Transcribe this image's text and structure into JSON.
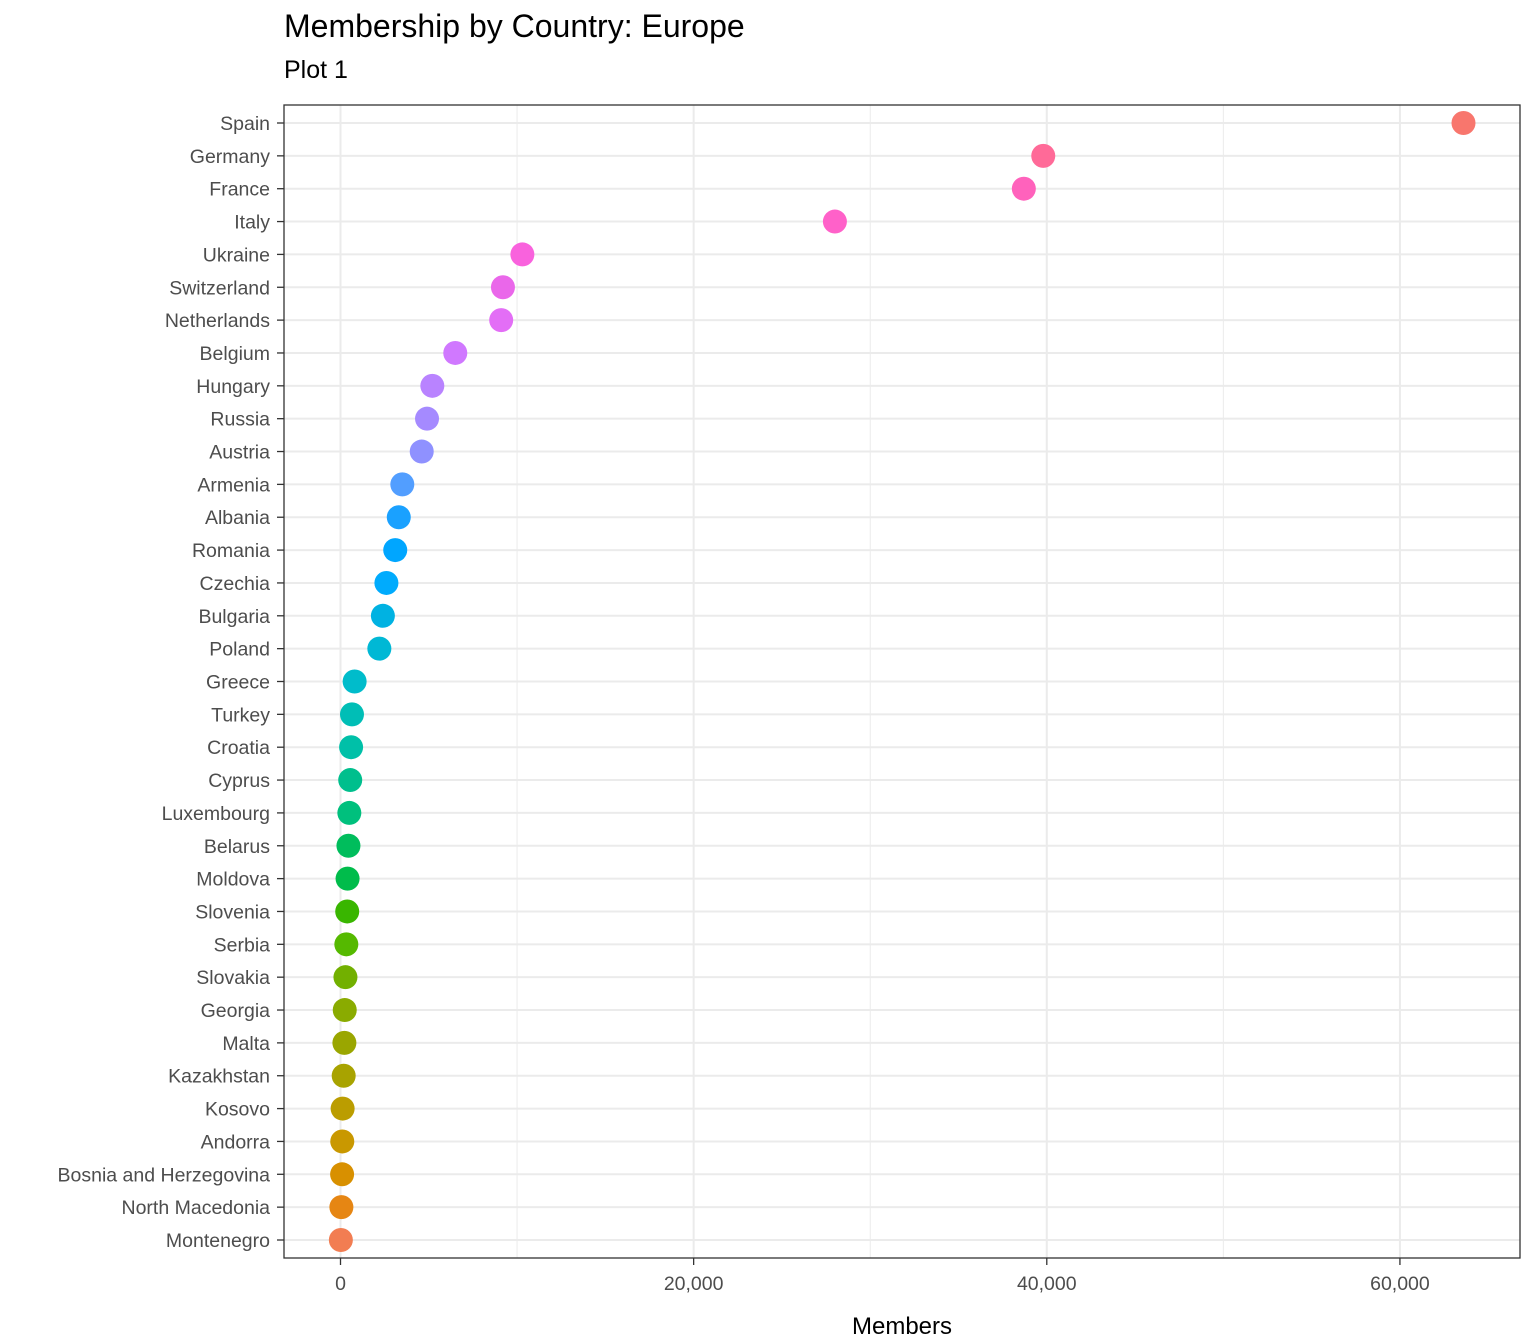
{
  "chart_data": {
    "type": "scatter",
    "title": "Membership by Country: Europe",
    "subtitle": "Plot 1",
    "xlabel": "Members",
    "ylabel": "",
    "xlim": [
      -3200,
      66800
    ],
    "xticks": [
      0,
      20000,
      40000,
      60000
    ],
    "xtick_labels": [
      "0",
      "20,000",
      "40,000",
      "60,000"
    ],
    "grid": true,
    "legend": "none",
    "categories": [
      "Spain",
      "Germany",
      "France",
      "Italy",
      "Ukraine",
      "Switzerland",
      "Netherlands",
      "Belgium",
      "Hungary",
      "Russia",
      "Austria",
      "Armenia",
      "Albania",
      "Romania",
      "Czechia",
      "Bulgaria",
      "Poland",
      "Greece",
      "Turkey",
      "Croatia",
      "Cyprus",
      "Luxembourg",
      "Belarus",
      "Moldova",
      "Slovenia",
      "Serbia",
      "Slovakia",
      "Georgia",
      "Malta",
      "Kazakhstan",
      "Kosovo",
      "Andorra",
      "Bosnia and Herzegovina",
      "North Macedonia",
      "Montenegro"
    ],
    "values": [
      63600,
      39800,
      38700,
      28000,
      10300,
      9200,
      9100,
      6500,
      5200,
      4900,
      4600,
      3500,
      3300,
      3100,
      2600,
      2400,
      2200,
      800,
      650,
      600,
      550,
      500,
      450,
      400,
      380,
      330,
      280,
      240,
      220,
      180,
      120,
      100,
      90,
      50,
      20
    ],
    "colors": [
      "#F8766D",
      "#FF6A98",
      "#FF62BC",
      "#FF61C9",
      "#F962DD",
      "#EA67EA",
      "#E36EF6",
      "#D078FF",
      "#B983FF",
      "#A58AFF",
      "#8F91FF",
      "#529EFF",
      "#1AA1FF",
      "#00A6FF",
      "#00ABFD",
      "#00B2E2",
      "#00B8D5",
      "#00BCCB",
      "#00BEB6",
      "#00C0A8",
      "#00BF8D",
      "#00C07D",
      "#00BD5C",
      "#00BC4B",
      "#39B600",
      "#55B900",
      "#72B000",
      "#8AAB00",
      "#9AA600",
      "#A8A300",
      "#BB9D00",
      "#C99800",
      "#D89000",
      "#E68613",
      "#F27D52"
    ]
  }
}
